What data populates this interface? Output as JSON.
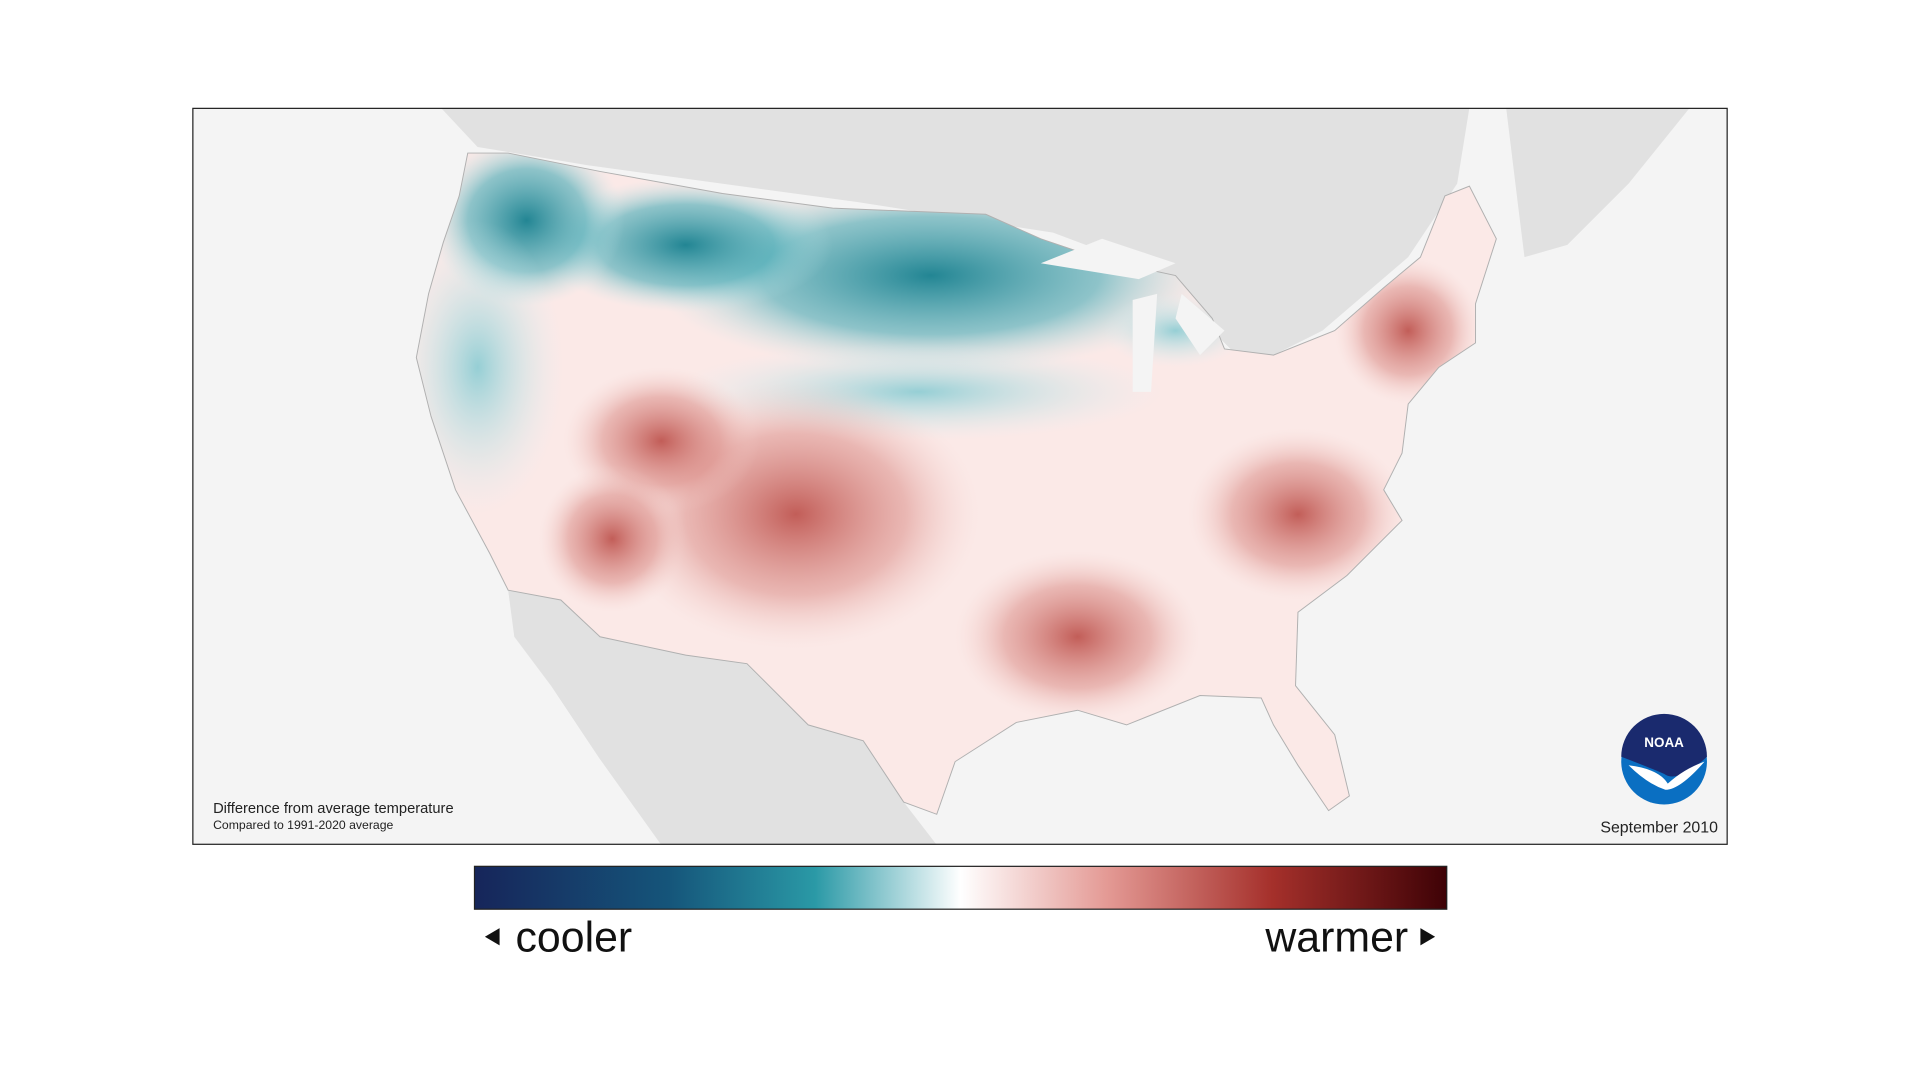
{
  "map": {
    "caption": {
      "title": "Difference from average temperature",
      "subtitle": "Compared to 1991-2020 average"
    },
    "date": "September 2010",
    "logo": "NOAA",
    "legend": {
      "low": "cooler",
      "high": "warmer"
    }
  }
}
